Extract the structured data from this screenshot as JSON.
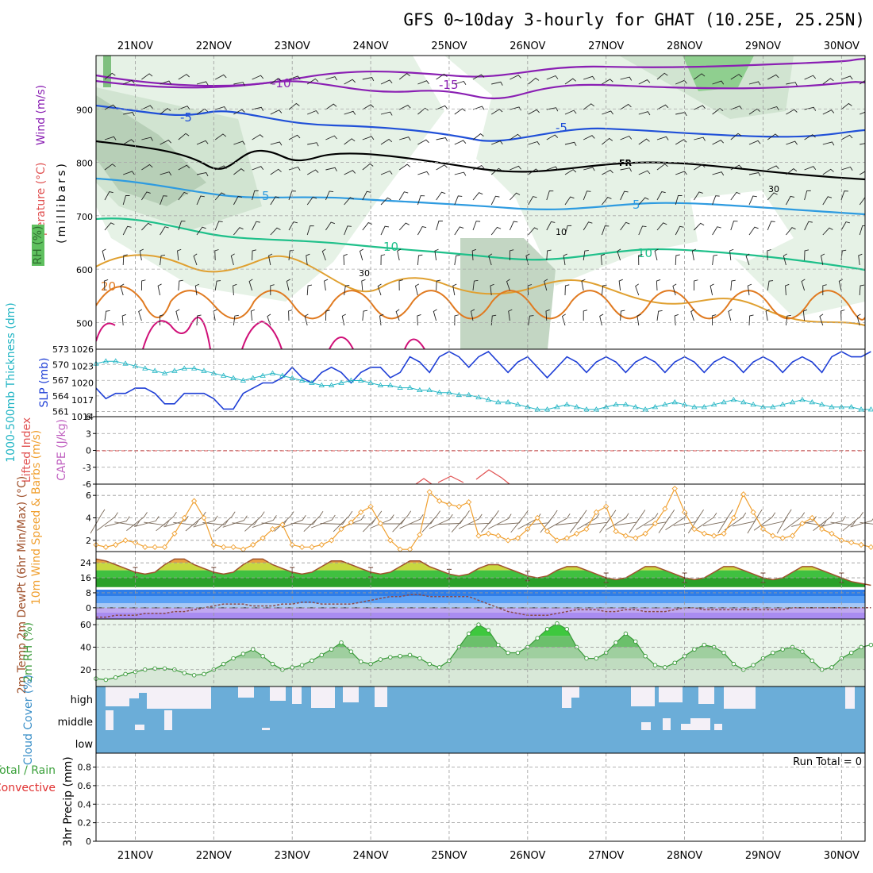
{
  "chart_data": {
    "type": "meteogram",
    "title": "GFS 0~10day 3-hourly for GHAT (10.25E, 25.25N)",
    "x_start_day": 20.5,
    "x_end_day": 30.3,
    "days": [
      "21NOV",
      "22NOV",
      "23NOV",
      "24NOV",
      "25NOV",
      "26NOV",
      "27NOV",
      "28NOV",
      "29NOV",
      "30NOV"
    ],
    "panels": [
      {
        "id": "upper-air",
        "type": "contour",
        "ylabels": [
          "Wind (m/s)",
          "Temperature (°C)",
          "RH (%)",
          "(millibars)"
        ],
        "yticks": [
          500,
          600,
          700,
          800,
          900
        ],
        "ylim": [
          1000,
          450
        ],
        "isotherm_labels": [
          "-15",
          "-10",
          "-5",
          "FR",
          "5",
          "10",
          "20"
        ],
        "rh_labels": [
          "10",
          "30"
        ]
      },
      {
        "id": "thickness-slp",
        "type": "line",
        "ylabel_left": "1000-500mb Thickness (dm)",
        "ylabel_right": "SLP (mb)",
        "yticks_left": [
          561,
          564,
          567,
          570,
          573
        ],
        "yticks_right": [
          1014,
          1017,
          1020,
          1023,
          1026
        ],
        "ylim_left": [
          560,
          573
        ],
        "ylim_right": [
          1014,
          1026
        ],
        "series": [
          {
            "name": "SLP (mb)",
            "axis": "right",
            "color": "#1f3fd6",
            "values": [
              1019,
              1017,
              1018,
              1018,
              1019,
              1019,
              1018,
              1016,
              1016,
              1018,
              1018,
              1018,
              1017,
              1015,
              1015,
              1018,
              1019,
              1020,
              1020,
              1021,
              1023,
              1021,
              1020,
              1022,
              1023,
              1022,
              1020,
              1022,
              1023,
              1023,
              1021,
              1022,
              1025,
              1024,
              1022,
              1025,
              1026,
              1025,
              1023,
              1025,
              1026,
              1024,
              1022,
              1024,
              1025,
              1023,
              1021,
              1023,
              1025,
              1024,
              1022,
              1024,
              1025,
              1024,
              1022,
              1024,
              1025,
              1024,
              1022,
              1024,
              1025,
              1024,
              1022,
              1024,
              1025,
              1024,
              1022,
              1024,
              1025,
              1024,
              1022,
              1024,
              1025,
              1024,
              1022,
              1025,
              1026,
              1025,
              1025,
              1026
            ]
          },
          {
            "name": "1000-500mb Thickness (dm)",
            "axis": "left",
            "color": "#22b5c4",
            "values": [
              570.5,
              571,
              571,
              570.5,
              570,
              569.5,
              569,
              568.5,
              569,
              569.5,
              569.5,
              569,
              568.5,
              568,
              567.5,
              567,
              567.5,
              568,
              568.5,
              568,
              567.5,
              567,
              566.5,
              566,
              566,
              566.5,
              567,
              567,
              566.5,
              566,
              566,
              565.5,
              565.5,
              565,
              565,
              564.5,
              564.5,
              564,
              564,
              563.5,
              563,
              562.5,
              562.5,
              562,
              561.5,
              561,
              561,
              561.5,
              562,
              561.5,
              561,
              561,
              561.5,
              562,
              562,
              561.5,
              561,
              561.5,
              562,
              562.5,
              562,
              561.5,
              561.5,
              562,
              562.5,
              563,
              562.5,
              562,
              561.5,
              561.5,
              562,
              562.5,
              563,
              562.5,
              562,
              561.5,
              561.5,
              561.5,
              561,
              561
            ]
          }
        ]
      },
      {
        "id": "instability",
        "type": "line",
        "ylabel_left": "Lifted Index",
        "ylabel_right": "CAPE (J/kg)",
        "yticks": [
          "-6",
          "-3",
          "0",
          "3",
          "6"
        ],
        "ylim": [
          -6,
          6
        ]
      },
      {
        "id": "wind10m",
        "type": "line",
        "ylabel": "10m Wind Speed & Barbs (m/s)",
        "yticks": [
          2,
          4,
          6
        ],
        "ylim": [
          1,
          7
        ],
        "series": [
          {
            "name": "10m wind speed",
            "color": "#f0a030",
            "values": [
              1.6,
              1.4,
              1.6,
              2.0,
              1.8,
              1.4,
              1.4,
              1.4,
              2.6,
              4.0,
              5.5,
              4.0,
              1.6,
              1.4,
              1.4,
              1.2,
              1.6,
              2.2,
              3.0,
              3.4,
              1.6,
              1.4,
              1.4,
              1.6,
              2.0,
              3.0,
              3.6,
              4.5,
              5.0,
              3.5,
              2.0,
              1.2,
              1.2,
              2.5,
              6.3,
              5.5,
              5.2,
              5.0,
              5.4,
              2.4,
              2.6,
              2.4,
              2.0,
              2.2,
              3.0,
              4.0,
              2.8,
              2.0,
              2.2,
              2.6,
              3.0,
              4.5,
              5.0,
              2.8,
              2.4,
              2.2,
              2.6,
              3.5,
              4.8,
              6.6,
              4.5,
              3.0,
              2.6,
              2.4,
              2.6,
              4.0,
              6.1,
              4.5,
              3.0,
              2.4,
              2.2,
              2.4,
              3.5,
              4.0,
              3.0,
              2.6,
              2.0,
              1.8,
              1.6,
              1.4
            ]
          }
        ]
      },
      {
        "id": "temperature",
        "type": "area",
        "ylabel": "2m Temp 2m DewPt (6hr Min/Max) (°C)",
        "yticks": [
          0,
          8,
          16,
          24
        ],
        "ylim": [
          -6,
          30
        ],
        "series": [
          {
            "name": "2m Temp",
            "color": "#a0522d",
            "values": [
              26,
              25,
              23,
              21,
              19,
              18,
              19,
              23,
              26,
              26,
              23,
              21,
              19,
              18,
              19,
              23,
              26,
              26,
              23,
              21,
              19,
              18,
              19,
              22,
              25,
              25,
              23,
              21,
              19,
              18,
              19,
              22,
              25,
              25,
              22,
              20,
              18,
              17,
              18,
              21,
              23,
              23,
              21,
              19,
              17,
              16,
              17,
              20,
              22,
              22,
              20,
              18,
              16,
              15,
              16,
              19,
              22,
              22,
              20,
              18,
              16,
              15,
              16,
              19,
              22,
              22,
              20,
              18,
              16,
              15,
              16,
              19,
              22,
              22,
              20,
              18,
              16,
              14,
              13,
              12
            ]
          },
          {
            "name": "2m DewPt",
            "color": "#8b4a4a",
            "values": [
              -5,
              -5,
              -4,
              -4,
              -4,
              -3,
              -3,
              -3,
              -2,
              -2,
              -1,
              0,
              1,
              2,
              2,
              2,
              1,
              1,
              1,
              2,
              2,
              3,
              3,
              2,
              2,
              2,
              2,
              3,
              4,
              5,
              6,
              6,
              7,
              7,
              6,
              6,
              6,
              6,
              6,
              4,
              2,
              0,
              -2,
              -3,
              -4,
              -4,
              -4,
              -3,
              -2,
              -1,
              -1,
              -1,
              -2,
              -2,
              -1,
              -1,
              -2,
              -2,
              -2,
              -1,
              0,
              0,
              -1,
              -1,
              -1,
              -1,
              -1,
              -1,
              -1,
              -1,
              -1,
              0,
              0,
              0,
              0,
              0,
              0,
              0,
              0,
              0
            ]
          }
        ]
      },
      {
        "id": "rh2m",
        "type": "area",
        "ylabel": "2m RH (%)",
        "yticks": [
          20,
          40,
          60
        ],
        "ylim": [
          5,
          65
        ],
        "series": [
          {
            "name": "2m RH",
            "color": "#3a9a3a",
            "values": [
              12,
              11,
              13,
              16,
              18,
              20,
              21,
              21,
              20,
              17,
              15,
              16,
              20,
              25,
              30,
              34,
              38,
              32,
              25,
              20,
              22,
              24,
              28,
              33,
              38,
              44,
              36,
              27,
              25,
              29,
              31,
              32,
              33,
              30,
              25,
              22,
              28,
              40,
              52,
              60,
              55,
              42,
              35,
              35,
              40,
              48,
              56,
              61,
              56,
              40,
              30,
              30,
              35,
              44,
              52,
              45,
              32,
              24,
              22,
              26,
              32,
              38,
              42,
              40,
              35,
              25,
              20,
              24,
              30,
              35,
              38,
              40,
              36,
              28,
              20,
              22,
              30,
              35,
              40,
              42
            ]
          }
        ]
      },
      {
        "id": "cloud",
        "type": "bar",
        "ylabel": "Cloud Cover (%)",
        "rows": [
          "high",
          "middle",
          "low"
        ]
      },
      {
        "id": "precip",
        "type": "bar",
        "ylabel_left": "Total / Rain",
        "ylabel_sub": "Convective",
        "ylabel": "3hr Precip (mm)",
        "yticks": [
          "0",
          "0.2",
          "0.4",
          "0.6",
          "0.8"
        ],
        "ylim": [
          0,
          0.95
        ],
        "run_total": "Run Total = 0"
      }
    ]
  }
}
